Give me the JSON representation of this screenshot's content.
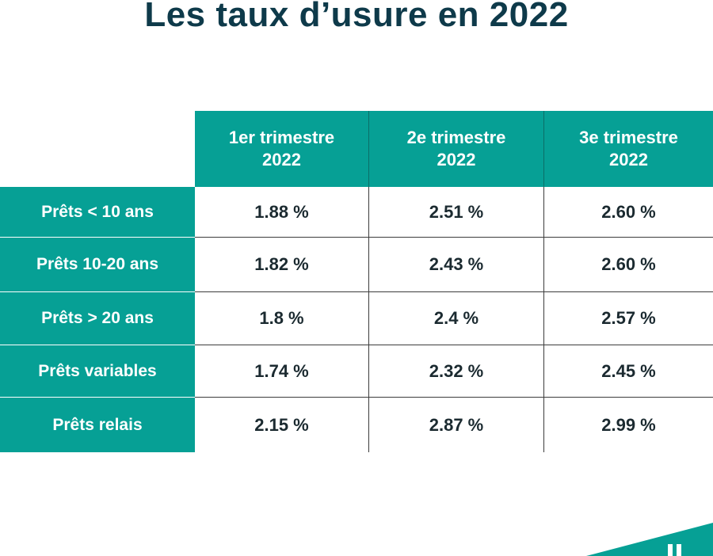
{
  "title": "Les taux d’usure en 2022",
  "chart_data": {
    "type": "table",
    "title": "Les taux d’usure en 2022",
    "columns": [
      {
        "line1": "1er trimestre",
        "line2": "2022"
      },
      {
        "line1": "2e trimestre",
        "line2": "2022"
      },
      {
        "line1": "3e trimestre",
        "line2": "2022"
      }
    ],
    "rows": [
      {
        "label": "Prêts < 10 ans",
        "values": [
          "1.88 %",
          "2.51 %",
          "2.60 %"
        ]
      },
      {
        "label": "Prêts 10-20 ans",
        "values": [
          "1.82 %",
          "2.43 %",
          "2.60 %"
        ]
      },
      {
        "label": "Prêts > 20 ans",
        "values": [
          "1.8 %",
          "2.4 %",
          "2.57 %"
        ]
      },
      {
        "label": "Prêts variables",
        "values": [
          "1.74 %",
          "2.32 %",
          "2.45 %"
        ]
      },
      {
        "label": "Prêts relais",
        "values": [
          "2.15 %",
          "2.87 %",
          "2.99 %"
        ]
      }
    ]
  },
  "colors": {
    "teal": "#06a095",
    "title": "#0e3a4a"
  }
}
